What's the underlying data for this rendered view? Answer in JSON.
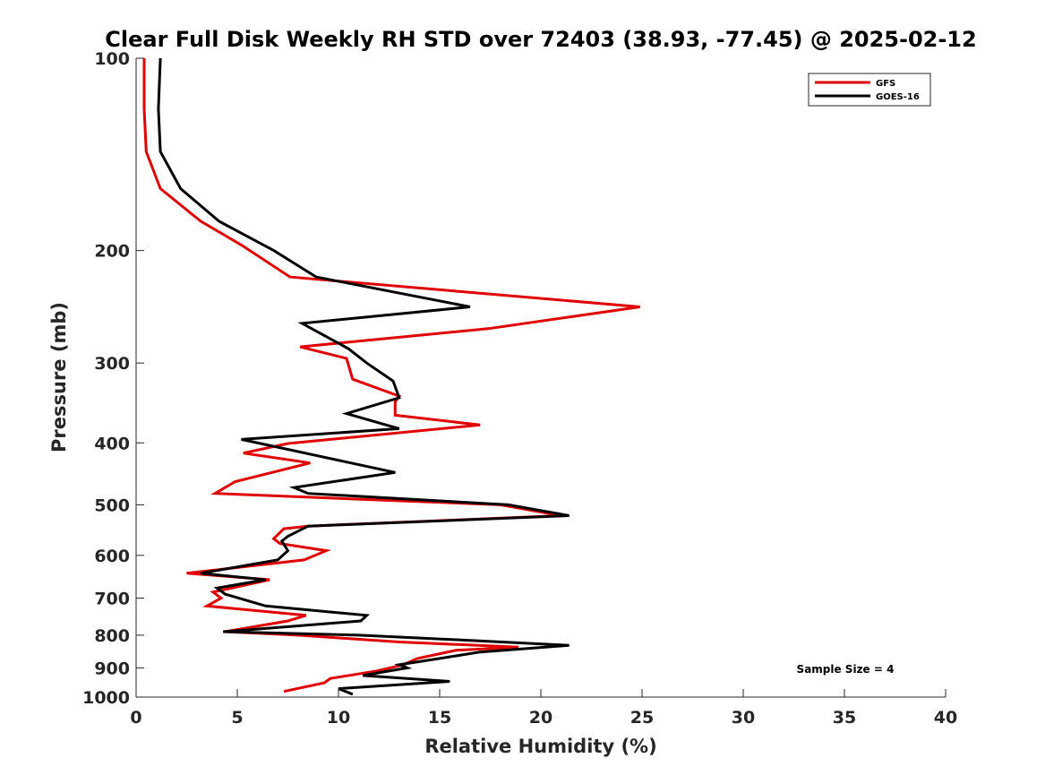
{
  "chart_data": {
    "type": "line",
    "title": "Clear Full Disk Weekly RH STD over 72403 (38.93, -77.45) @ 2025-02-12",
    "xlabel": "Relative Humidity (%)",
    "ylabel": "Pressure (mb)",
    "xlim": [
      0,
      40
    ],
    "ylim": [
      100,
      1000
    ],
    "yscale": "log",
    "y_reversed": true,
    "xticks": [
      "0",
      "5",
      "10",
      "15",
      "20",
      "25",
      "30",
      "35",
      "40"
    ],
    "yticks": [
      "100",
      "200",
      "300",
      "400",
      "500",
      "600",
      "700",
      "800",
      "900",
      "1000"
    ],
    "grid": false,
    "legend_position": "top-right",
    "annotation": "Sample Size = 4",
    "series": [
      {
        "name": "GFS",
        "color": "#e00000",
        "points": [
          [
            0.4,
            100
          ],
          [
            0.4,
            120
          ],
          [
            0.5,
            140
          ],
          [
            1.2,
            160
          ],
          [
            3.2,
            180
          ],
          [
            5.2,
            196
          ],
          [
            7.6,
            220
          ],
          [
            24.9,
            245
          ],
          [
            17.4,
            265
          ],
          [
            8.1,
            283
          ],
          [
            10.4,
            295
          ],
          [
            10.7,
            318
          ],
          [
            13.0,
            338
          ],
          [
            12.8,
            345
          ],
          [
            12.8,
            362
          ],
          [
            17.0,
            375
          ],
          [
            7.5,
            401
          ],
          [
            5.3,
            415
          ],
          [
            8.6,
            430
          ],
          [
            4.9,
            460
          ],
          [
            3.9,
            480
          ],
          [
            18.0,
            500
          ],
          [
            21.0,
            520
          ],
          [
            8.5,
            540
          ],
          [
            7.3,
            545
          ],
          [
            6.8,
            565
          ],
          [
            7.1,
            575
          ],
          [
            9.4,
            590
          ],
          [
            8.3,
            610
          ],
          [
            2.5,
            640
          ],
          [
            6.6,
            655
          ],
          [
            3.8,
            685
          ],
          [
            4.2,
            700
          ],
          [
            3.5,
            720
          ],
          [
            8.4,
            745
          ],
          [
            7.5,
            760
          ],
          [
            4.4,
            790
          ],
          [
            8.0,
            800
          ],
          [
            13.0,
            820
          ],
          [
            18.9,
            835
          ],
          [
            15.8,
            845
          ],
          [
            13.9,
            870
          ],
          [
            13.2,
            890
          ],
          [
            11.9,
            910
          ],
          [
            9.6,
            935
          ],
          [
            9.3,
            950
          ],
          [
            7.3,
            980
          ]
        ]
      },
      {
        "name": "GOES-16",
        "color": "#000000",
        "points": [
          [
            1.2,
            100
          ],
          [
            1.1,
            120
          ],
          [
            1.2,
            140
          ],
          [
            2.2,
            160
          ],
          [
            4.1,
            180
          ],
          [
            6.8,
            200
          ],
          [
            8.9,
            220
          ],
          [
            16.5,
            245
          ],
          [
            8.2,
            260
          ],
          [
            10.5,
            285
          ],
          [
            11.4,
            300
          ],
          [
            12.7,
            320
          ],
          [
            13.0,
            340
          ],
          [
            10.4,
            360
          ],
          [
            13.0,
            380
          ],
          [
            5.2,
            395
          ],
          [
            12.8,
            445
          ],
          [
            7.8,
            470
          ],
          [
            8.5,
            480
          ],
          [
            18.4,
            500
          ],
          [
            21.4,
            520
          ],
          [
            8.5,
            540
          ],
          [
            7.5,
            560
          ],
          [
            7.2,
            570
          ],
          [
            7.5,
            590
          ],
          [
            7.0,
            610
          ],
          [
            3.2,
            640
          ],
          [
            6.4,
            655
          ],
          [
            4.0,
            675
          ],
          [
            4.4,
            690
          ],
          [
            6.4,
            720
          ],
          [
            11.4,
            745
          ],
          [
            11.1,
            760
          ],
          [
            5.5,
            785
          ],
          [
            4.3,
            790
          ],
          [
            11.0,
            800
          ],
          [
            16.5,
            815
          ],
          [
            21.4,
            830
          ],
          [
            17.0,
            850
          ],
          [
            15.0,
            870
          ],
          [
            13.0,
            890
          ],
          [
            13.4,
            900
          ],
          [
            11.2,
            925
          ],
          [
            15.5,
            945
          ],
          [
            10.0,
            970
          ],
          [
            10.7,
            990
          ]
        ]
      }
    ]
  }
}
